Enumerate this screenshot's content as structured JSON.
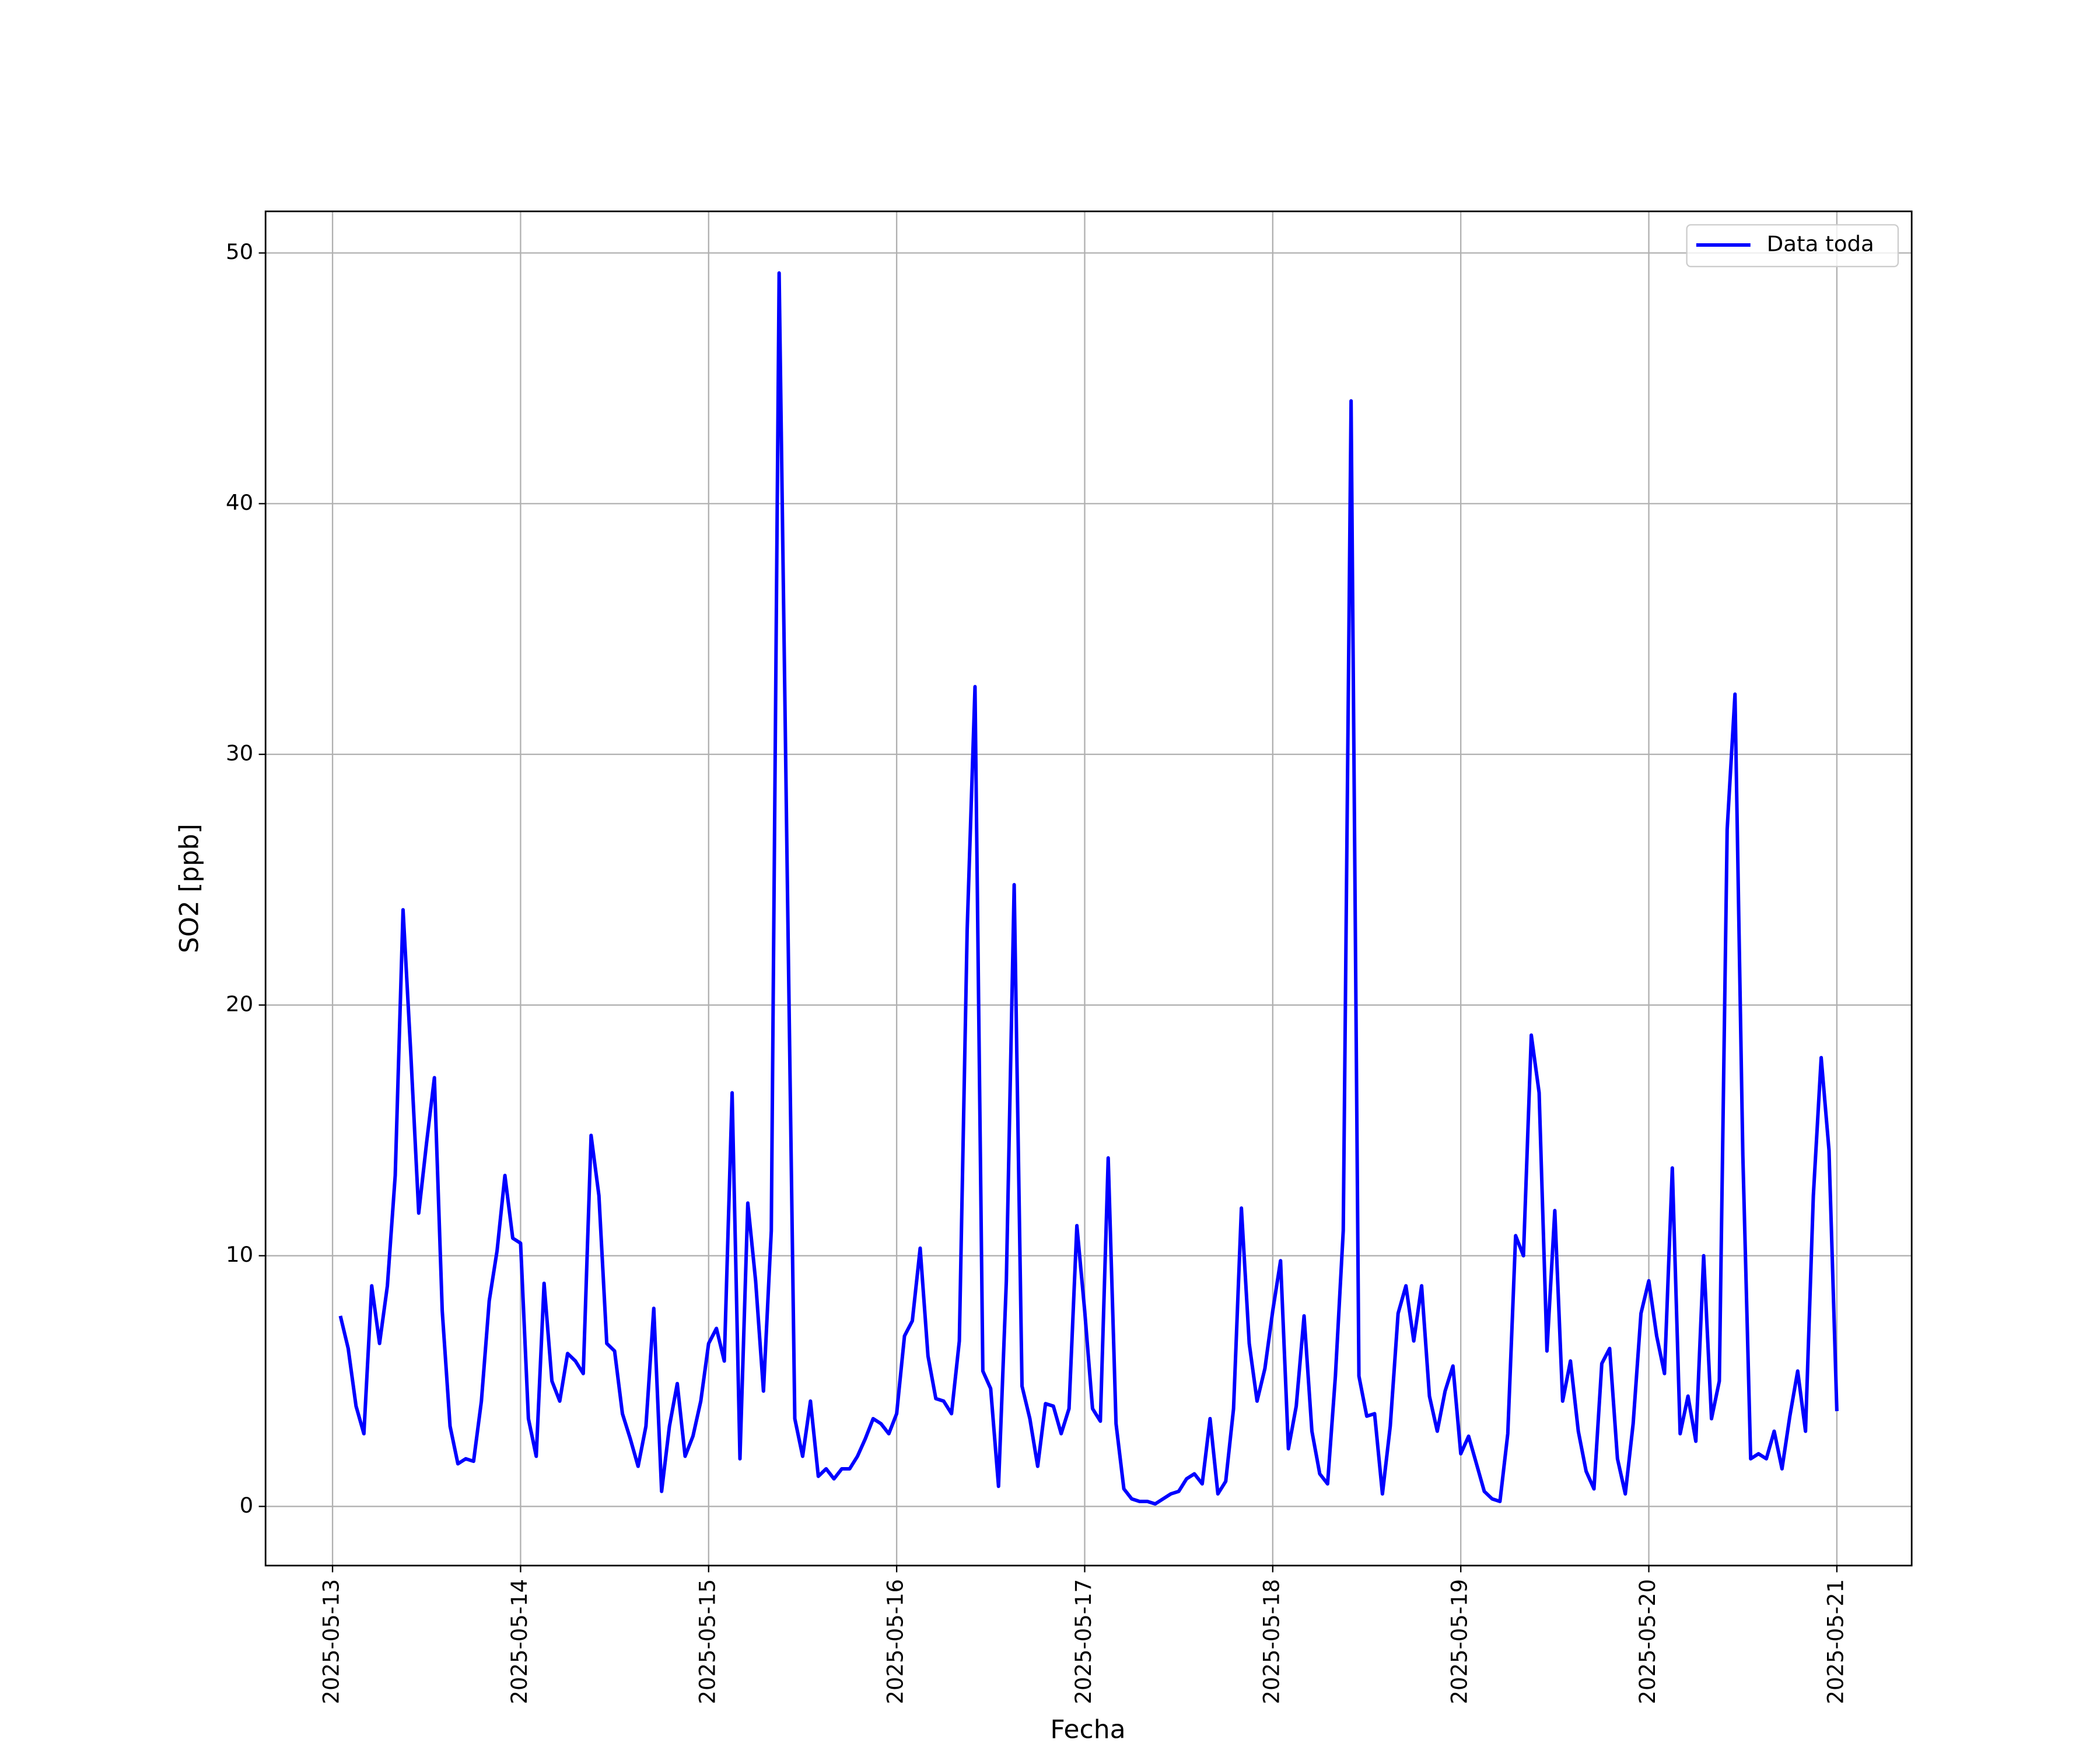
{
  "chart_data": {
    "type": "line",
    "x_label": "Fecha",
    "y_label": "SO2 [ppb]",
    "x": [
      "2025-05-13 01:00",
      "2025-05-13 02:00",
      "2025-05-13 03:00",
      "2025-05-13 04:00",
      "2025-05-13 05:00",
      "2025-05-13 06:00",
      "2025-05-13 07:00",
      "2025-05-13 08:00",
      "2025-05-13 09:00",
      "2025-05-13 10:00",
      "2025-05-13 11:00",
      "2025-05-13 12:00",
      "2025-05-13 13:00",
      "2025-05-13 14:00",
      "2025-05-13 15:00",
      "2025-05-13 16:00",
      "2025-05-13 17:00",
      "2025-05-13 18:00",
      "2025-05-13 19:00",
      "2025-05-13 20:00",
      "2025-05-13 21:00",
      "2025-05-13 22:00",
      "2025-05-13 23:00",
      "2025-05-14 00:00",
      "2025-05-14 01:00",
      "2025-05-14 02:00",
      "2025-05-14 03:00",
      "2025-05-14 04:00",
      "2025-05-14 05:00",
      "2025-05-14 06:00",
      "2025-05-14 07:00",
      "2025-05-14 08:00",
      "2025-05-14 09:00",
      "2025-05-14 10:00",
      "2025-05-14 11:00",
      "2025-05-14 12:00",
      "2025-05-14 13:00",
      "2025-05-14 14:00",
      "2025-05-14 15:00",
      "2025-05-14 16:00",
      "2025-05-14 17:00",
      "2025-05-14 18:00",
      "2025-05-14 19:00",
      "2025-05-14 20:00",
      "2025-05-14 21:00",
      "2025-05-14 22:00",
      "2025-05-14 23:00",
      "2025-05-15 00:00",
      "2025-05-15 01:00",
      "2025-05-15 02:00",
      "2025-05-15 03:00",
      "2025-05-15 04:00",
      "2025-05-15 05:00",
      "2025-05-15 06:00",
      "2025-05-15 07:00",
      "2025-05-15 08:00",
      "2025-05-15 09:00",
      "2025-05-15 10:00",
      "2025-05-15 11:00",
      "2025-05-15 12:00",
      "2025-05-15 13:00",
      "2025-05-15 14:00",
      "2025-05-15 15:00",
      "2025-05-15 16:00",
      "2025-05-15 17:00",
      "2025-05-15 18:00",
      "2025-05-15 19:00",
      "2025-05-15 20:00",
      "2025-05-15 21:00",
      "2025-05-15 22:00",
      "2025-05-15 23:00",
      "2025-05-16 00:00",
      "2025-05-16 01:00",
      "2025-05-16 02:00",
      "2025-05-16 03:00",
      "2025-05-16 04:00",
      "2025-05-16 05:00",
      "2025-05-16 06:00",
      "2025-05-16 07:00",
      "2025-05-16 08:00",
      "2025-05-16 09:00",
      "2025-05-16 10:00",
      "2025-05-16 11:00",
      "2025-05-16 12:00",
      "2025-05-16 13:00",
      "2025-05-16 14:00",
      "2025-05-16 15:00",
      "2025-05-16 16:00",
      "2025-05-16 17:00",
      "2025-05-16 18:00",
      "2025-05-16 19:00",
      "2025-05-16 20:00",
      "2025-05-16 21:00",
      "2025-05-16 22:00",
      "2025-05-16 23:00",
      "2025-05-17 00:00",
      "2025-05-17 01:00",
      "2025-05-17 02:00",
      "2025-05-17 03:00",
      "2025-05-17 04:00",
      "2025-05-17 05:00",
      "2025-05-17 06:00",
      "2025-05-17 07:00",
      "2025-05-17 08:00",
      "2025-05-17 09:00",
      "2025-05-17 10:00",
      "2025-05-17 11:00",
      "2025-05-17 12:00",
      "2025-05-17 13:00",
      "2025-05-17 14:00",
      "2025-05-17 15:00",
      "2025-05-17 16:00",
      "2025-05-17 17:00",
      "2025-05-17 18:00",
      "2025-05-17 19:00",
      "2025-05-17 20:00",
      "2025-05-17 21:00",
      "2025-05-17 22:00",
      "2025-05-17 23:00",
      "2025-05-18 00:00",
      "2025-05-18 01:00",
      "2025-05-18 02:00",
      "2025-05-18 03:00",
      "2025-05-18 04:00",
      "2025-05-18 05:00",
      "2025-05-18 06:00",
      "2025-05-18 07:00",
      "2025-05-18 08:00",
      "2025-05-18 09:00",
      "2025-05-18 10:00",
      "2025-05-18 11:00",
      "2025-05-18 12:00",
      "2025-05-18 13:00",
      "2025-05-18 14:00",
      "2025-05-18 15:00",
      "2025-05-18 16:00",
      "2025-05-18 17:00",
      "2025-05-18 18:00",
      "2025-05-18 19:00",
      "2025-05-18 20:00",
      "2025-05-18 21:00",
      "2025-05-18 22:00",
      "2025-05-18 23:00",
      "2025-05-19 00:00",
      "2025-05-19 01:00",
      "2025-05-19 02:00",
      "2025-05-19 03:00",
      "2025-05-19 04:00",
      "2025-05-19 05:00",
      "2025-05-19 06:00",
      "2025-05-19 07:00",
      "2025-05-19 08:00",
      "2025-05-19 09:00",
      "2025-05-19 10:00",
      "2025-05-19 11:00",
      "2025-05-19 12:00",
      "2025-05-19 13:00",
      "2025-05-19 14:00",
      "2025-05-19 15:00",
      "2025-05-19 16:00",
      "2025-05-19 17:00",
      "2025-05-19 18:00",
      "2025-05-19 19:00",
      "2025-05-19 20:00",
      "2025-05-19 21:00",
      "2025-05-19 22:00",
      "2025-05-19 23:00",
      "2025-05-20 00:00",
      "2025-05-20 01:00",
      "2025-05-20 02:00",
      "2025-05-20 03:00",
      "2025-05-20 04:00",
      "2025-05-20 05:00",
      "2025-05-20 06:00",
      "2025-05-20 07:00",
      "2025-05-20 08:00",
      "2025-05-20 09:00",
      "2025-05-20 10:00",
      "2025-05-20 11:00",
      "2025-05-20 12:00",
      "2025-05-20 13:00",
      "2025-05-20 14:00",
      "2025-05-20 15:00",
      "2025-05-20 16:00",
      "2025-05-20 17:00",
      "2025-05-20 18:00",
      "2025-05-20 19:00",
      "2025-05-20 20:00",
      "2025-05-20 21:00",
      "2025-05-20 22:00",
      "2025-05-20 23:00",
      "2025-05-21 00:00"
    ],
    "series": [
      {
        "name": "Data toda",
        "color": "#0000ff",
        "values": [
          7.6,
          6.3,
          4.0,
          2.9,
          8.8,
          6.5,
          8.8,
          13.2,
          23.8,
          18,
          11.7,
          14.5,
          17.1,
          7.8,
          3.2,
          1.7,
          1.9,
          1.8,
          4.2,
          8.2,
          10.2,
          13.2,
          10.7,
          10.5,
          3.5,
          2.0,
          8.9,
          5.0,
          4.2,
          6.1,
          5.8,
          5.3,
          14.8,
          12.4,
          6.5,
          6.2,
          3.7,
          2.7,
          1.6,
          3.2,
          7.9,
          0.6,
          3.2,
          4.9,
          2.0,
          2.8,
          4.2,
          6.5,
          7.1,
          5.8,
          16.5,
          1.9,
          12.1,
          9.0,
          4.6,
          11.0,
          49.2,
          26,
          3.5,
          2.0,
          4.2,
          1.2,
          1.5,
          1.1,
          1.5,
          1.5,
          2.0,
          2.7,
          3.5,
          3.3,
          2.9,
          3.7,
          6.8,
          7.4,
          10.3,
          6.0,
          4.3,
          4.2,
          3.7,
          6.6,
          23,
          32.7,
          5.4,
          4.7,
          0.8,
          9,
          24.8,
          4.8,
          3.5,
          1.6,
          4.1,
          4.0,
          2.9,
          3.9,
          11.2,
          7.8,
          3.9,
          3.4,
          13.9,
          3.3,
          0.7,
          0.3,
          0.2,
          0.2,
          0.1,
          0.3,
          0.5,
          0.6,
          1.1,
          1.3,
          0.9,
          3.5,
          0.5,
          1.0,
          3.9,
          11.9,
          6.5,
          4.2,
          5.5,
          7.8,
          9.8,
          2.3,
          4.0,
          7.6,
          3.0,
          1.3,
          0.9,
          5.2,
          11.0,
          44.1,
          5.2,
          3.6,
          3.7,
          0.5,
          3.2,
          7.7,
          8.8,
          6.6,
          8.8,
          4.4,
          3.0,
          4.6,
          5.6,
          2.1,
          2.8,
          1.7,
          0.6,
          0.3,
          0.2,
          2.9,
          10.8,
          10.0,
          18.8,
          16.5,
          6.2,
          11.8,
          4.2,
          5.8,
          3.0,
          1.4,
          0.7,
          5.7,
          6.3,
          1.9,
          0.5,
          3.3,
          7.7,
          9.0,
          6.8,
          5.3,
          13.5,
          2.9,
          4.4,
          2.6,
          10.0,
          3.5,
          5.0,
          27,
          32.4,
          14,
          1.9,
          2.1,
          1.9,
          3.0,
          1.5,
          3.6,
          5.4,
          3.0,
          12.4,
          17.9,
          14.2,
          3.8
        ]
      }
    ],
    "xlim": [
      "2025-05-12 15:27",
      "2025-05-21 09:33"
    ],
    "xticks": [
      "2025-05-13",
      "2025-05-14",
      "2025-05-15",
      "2025-05-16",
      "2025-05-17",
      "2025-05-18",
      "2025-05-19",
      "2025-05-20",
      "2025-05-21"
    ],
    "ylim": [
      -2.36,
      51.66
    ],
    "yticks": [
      0,
      10,
      20,
      30,
      40,
      50
    ],
    "grid": true,
    "legend": "upper right"
  }
}
